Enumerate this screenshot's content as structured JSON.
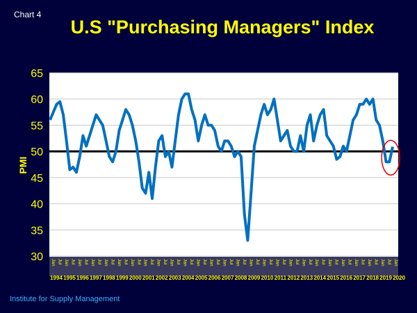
{
  "chart_label": "Chart 4",
  "title": "U.S \"Purchasing Managers\" Index",
  "source": "Institute for Supply Management",
  "colors": {
    "background": "#00003a",
    "title": "#ffff00",
    "line": "#0070c0",
    "reference": "#000000",
    "highlight": "#e00000",
    "source": "#3ab0ff"
  },
  "chart_data": {
    "type": "line",
    "title": "U.S \"Purchasing Managers\" Index",
    "xlabel": "",
    "ylabel": "PMI",
    "ylim": [
      30,
      65
    ],
    "yticks": [
      30,
      35,
      40,
      45,
      50,
      55,
      60,
      65
    ],
    "xlim": [
      1994,
      2020.1
    ],
    "month_tick_labels": [
      "Jan",
      "Jul"
    ],
    "year_labels": [
      "1994",
      "1995",
      "1996",
      "1997",
      "1998",
      "1999",
      "2000",
      "2001",
      "2002",
      "2003",
      "2004",
      "2005",
      "2006",
      "2007",
      "2008",
      "2009",
      "2010",
      "2011",
      "2012",
      "2013",
      "2014",
      "2015",
      "2016",
      "2017",
      "2018",
      "2019",
      "2020"
    ],
    "grid": true,
    "reference_line": 50,
    "highlight": "circle around latest readings (late 2019 - Jan 2020)",
    "series": [
      {
        "name": "PMI",
        "values": [
          56,
          57.5,
          59,
          59.5,
          57,
          52,
          46.5,
          47,
          46,
          49,
          53,
          51,
          53,
          55,
          57,
          56,
          55,
          52,
          49,
          48,
          50,
          54,
          56,
          58,
          57,
          55,
          52,
          48,
          43,
          42,
          46,
          41,
          47,
          52,
          53,
          49,
          50,
          47,
          52,
          57,
          60,
          61,
          61,
          58,
          56,
          52,
          55,
          57,
          55,
          55,
          54,
          51,
          50,
          52,
          52,
          51,
          49,
          50,
          49,
          38,
          33,
          42,
          51,
          54,
          57,
          59,
          57,
          58,
          60,
          56,
          52,
          53,
          54,
          51,
          50,
          50,
          53,
          50,
          55,
          57,
          52,
          55,
          57,
          58,
          53,
          52,
          51,
          48.5,
          49,
          51,
          50,
          53,
          56,
          57,
          59,
          59,
          60,
          59,
          60,
          56,
          55,
          52,
          48,
          48,
          50.9
        ]
      }
    ]
  }
}
